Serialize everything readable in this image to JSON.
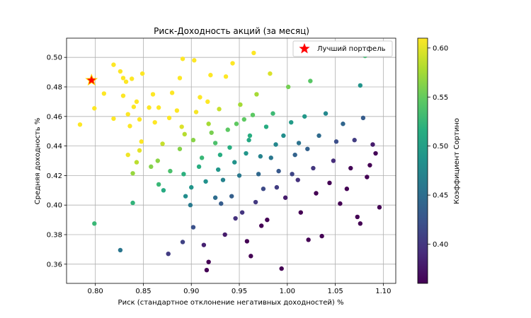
{
  "chart_data": {
    "type": "scatter",
    "title": "Риск-Доходность акций (за месяц)",
    "xlabel": "Риск (стандартное отклонение негативных доходностей) %",
    "ylabel": "Средняя доходность %",
    "xlim": [
      0.77,
      1.113
    ],
    "ylim": [
      0.347,
      0.513
    ],
    "xticks": [
      "0.80",
      "0.85",
      "0.90",
      "0.95",
      "1.00",
      "1.05",
      "1.10"
    ],
    "yticks": [
      "0.36",
      "0.38",
      "0.40",
      "0.42",
      "0.44",
      "0.46",
      "0.48",
      "0.50"
    ],
    "grid": true,
    "legend": {
      "position": "top-right",
      "entries": [
        "Лучший портфель"
      ]
    },
    "colorbar": {
      "label": "Коэффициент Сортино",
      "colormap": "viridis",
      "range": [
        0.36,
        0.61
      ],
      "ticks": [
        "0.40",
        "0.45",
        "0.50",
        "0.55",
        "0.60"
      ]
    },
    "best_portfolio": {
      "x": 0.796,
      "y": 0.4845,
      "color": "#ff0000",
      "edge": "#ffd700"
    },
    "series": [
      {
        "points": [
          {
            "x": 0.784,
            "y": 0.4545
          },
          {
            "x": 0.799,
            "y": 0.4655
          },
          {
            "x": 0.809,
            "y": 0.4755
          },
          {
            "x": 0.819,
            "y": 0.495
          },
          {
            "x": 0.819,
            "y": 0.4585
          },
          {
            "x": 0.826,
            "y": 0.4905
          },
          {
            "x": 0.829,
            "y": 0.486
          },
          {
            "x": 0.832,
            "y": 0.4835
          },
          {
            "x": 0.829,
            "y": 0.474
          },
          {
            "x": 0.838,
            "y": 0.4855
          },
          {
            "x": 0.834,
            "y": 0.4615
          },
          {
            "x": 0.836,
            "y": 0.4535
          },
          {
            "x": 0.84,
            "y": 0.4665
          },
          {
            "x": 0.843,
            "y": 0.47
          },
          {
            "x": 0.849,
            "y": 0.489
          },
          {
            "x": 0.846,
            "y": 0.458
          },
          {
            "x": 0.848,
            "y": 0.443
          },
          {
            "x": 0.846,
            "y": 0.437
          },
          {
            "x": 0.843,
            "y": 0.429
          },
          {
            "x": 0.839,
            "y": 0.4215
          },
          {
            "x": 0.834,
            "y": 0.434
          },
          {
            "x": 0.839,
            "y": 0.4015
          },
          {
            "x": 0.799,
            "y": 0.3875
          },
          {
            "x": 0.826,
            "y": 0.3695
          },
          {
            "x": 0.856,
            "y": 0.466
          },
          {
            "x": 0.86,
            "y": 0.475
          },
          {
            "x": 0.866,
            "y": 0.466
          },
          {
            "x": 0.862,
            "y": 0.456
          },
          {
            "x": 0.858,
            "y": 0.426
          },
          {
            "x": 0.865,
            "y": 0.43
          },
          {
            "x": 0.87,
            "y": 0.4415
          },
          {
            "x": 0.866,
            "y": 0.414
          },
          {
            "x": 0.871,
            "y": 0.41
          },
          {
            "x": 0.876,
            "y": 0.367
          },
          {
            "x": 0.877,
            "y": 0.459
          },
          {
            "x": 0.88,
            "y": 0.476
          },
          {
            "x": 0.885,
            "y": 0.464
          },
          {
            "x": 0.878,
            "y": 0.423
          },
          {
            "x": 0.888,
            "y": 0.486
          },
          {
            "x": 0.891,
            "y": 0.499
          },
          {
            "x": 0.89,
            "y": 0.453
          },
          {
            "x": 0.893,
            "y": 0.448
          },
          {
            "x": 0.888,
            "y": 0.438
          },
          {
            "x": 0.892,
            "y": 0.421
          },
          {
            "x": 0.894,
            "y": 0.406
          },
          {
            "x": 0.891,
            "y": 0.375
          },
          {
            "x": 0.899,
            "y": 0.4
          },
          {
            "x": 0.902,
            "y": 0.444
          },
          {
            "x": 0.905,
            "y": 0.463
          },
          {
            "x": 0.903,
            "y": 0.498
          },
          {
            "x": 0.909,
            "y": 0.473
          },
          {
            "x": 0.902,
            "y": 0.385
          },
          {
            "x": 0.913,
            "y": 0.373
          },
          {
            "x": 0.916,
            "y": 0.356
          },
          {
            "x": 0.918,
            "y": 0.3615
          },
          {
            "x": 0.911,
            "y": 0.432
          },
          {
            "x": 0.915,
            "y": 0.416
          },
          {
            "x": 0.918,
            "y": 0.455
          },
          {
            "x": 0.92,
            "y": 0.488
          },
          {
            "x": 0.925,
            "y": 0.442
          },
          {
            "x": 0.928,
            "y": 0.424
          },
          {
            "x": 0.931,
            "y": 0.401
          },
          {
            "x": 0.935,
            "y": 0.38
          },
          {
            "x": 0.929,
            "y": 0.465
          },
          {
            "x": 0.936,
            "y": 0.487
          },
          {
            "x": 0.94,
            "y": 0.439
          },
          {
            "x": 0.943,
            "y": 0.496
          },
          {
            "x": 0.947,
            "y": 0.455
          },
          {
            "x": 0.95,
            "y": 0.42
          },
          {
            "x": 0.953,
            "y": 0.395
          },
          {
            "x": 0.958,
            "y": 0.3755
          },
          {
            "x": 0.962,
            "y": 0.3655
          },
          {
            "x": 0.965,
            "y": 0.503
          },
          {
            "x": 0.968,
            "y": 0.475
          },
          {
            "x": 0.961,
            "y": 0.447
          },
          {
            "x": 0.972,
            "y": 0.433
          },
          {
            "x": 0.975,
            "y": 0.411
          },
          {
            "x": 0.979,
            "y": 0.39
          },
          {
            "x": 0.982,
            "y": 0.489
          },
          {
            "x": 0.985,
            "y": 0.462
          },
          {
            "x": 0.988,
            "y": 0.441
          },
          {
            "x": 0.991,
            "y": 0.423
          },
          {
            "x": 0.994,
            "y": 0.357
          },
          {
            "x": 0.998,
            "y": 0.405
          },
          {
            "x": 1.001,
            "y": 0.48
          },
          {
            "x": 1.004,
            "y": 0.456
          },
          {
            "x": 1.008,
            "y": 0.434
          },
          {
            "x": 1.011,
            "y": 0.417
          },
          {
            "x": 1.014,
            "y": 0.395
          },
          {
            "x": 1.018,
            "y": 0.46
          },
          {
            "x": 1.021,
            "y": 0.438
          },
          {
            "x": 1.024,
            "y": 0.484
          },
          {
            "x": 1.022,
            "y": 0.3765
          },
          {
            "x": 1.027,
            "y": 0.425
          },
          {
            "x": 1.03,
            "y": 0.408
          },
          {
            "x": 1.033,
            "y": 0.447
          },
          {
            "x": 1.036,
            "y": 0.379
          },
          {
            "x": 1.04,
            "y": 0.462
          },
          {
            "x": 1.044,
            "y": 0.415
          },
          {
            "x": 1.048,
            "y": 0.43
          },
          {
            "x": 1.051,
            "y": 0.443
          },
          {
            "x": 1.055,
            "y": 0.401
          },
          {
            "x": 1.058,
            "y": 0.455
          },
          {
            "x": 1.062,
            "y": 0.411
          },
          {
            "x": 1.066,
            "y": 0.425
          },
          {
            "x": 1.07,
            "y": 0.444
          },
          {
            "x": 1.073,
            "y": 0.392
          },
          {
            "x": 1.076,
            "y": 0.481
          },
          {
            "x": 1.076,
            "y": 0.3875
          },
          {
            "x": 1.079,
            "y": 0.459
          },
          {
            "x": 1.081,
            "y": 0.501
          },
          {
            "x": 1.083,
            "y": 0.419
          },
          {
            "x": 1.086,
            "y": 0.427
          },
          {
            "x": 1.089,
            "y": 0.441
          },
          {
            "x": 1.096,
            "y": 0.3985
          },
          {
            "x": 1.092,
            "y": 0.435
          },
          {
            "x": 0.945,
            "y": 0.429
          },
          {
            "x": 0.96,
            "y": 0.444
          },
          {
            "x": 0.955,
            "y": 0.458
          },
          {
            "x": 0.938,
            "y": 0.451
          },
          {
            "x": 0.97,
            "y": 0.421
          },
          {
            "x": 0.925,
            "y": 0.405
          },
          {
            "x": 0.983,
            "y": 0.432
          },
          {
            "x": 0.996,
            "y": 0.447
          },
          {
            "x": 0.951,
            "y": 0.468
          },
          {
            "x": 0.933,
            "y": 0.417
          },
          {
            "x": 0.967,
            "y": 0.402
          },
          {
            "x": 0.908,
            "y": 0.426
          },
          {
            "x": 0.978,
            "y": 0.453
          },
          {
            "x": 1.005,
            "y": 0.421
          },
          {
            "x": 0.942,
            "y": 0.406
          },
          {
            "x": 0.957,
            "y": 0.435
          },
          {
            "x": 0.921,
            "y": 0.449
          },
          {
            "x": 0.989,
            "y": 0.412
          },
          {
            "x": 0.946,
            "y": 0.391
          },
          {
            "x": 1.012,
            "y": 0.442
          },
          {
            "x": 0.93,
            "y": 0.434
          },
          {
            "x": 0.964,
            "y": 0.461
          },
          {
            "x": 0.917,
            "y": 0.47
          },
          {
            "x": 0.973,
            "y": 0.386
          },
          {
            "x": 0.9,
            "y": 0.412
          }
        ]
      }
    ]
  }
}
